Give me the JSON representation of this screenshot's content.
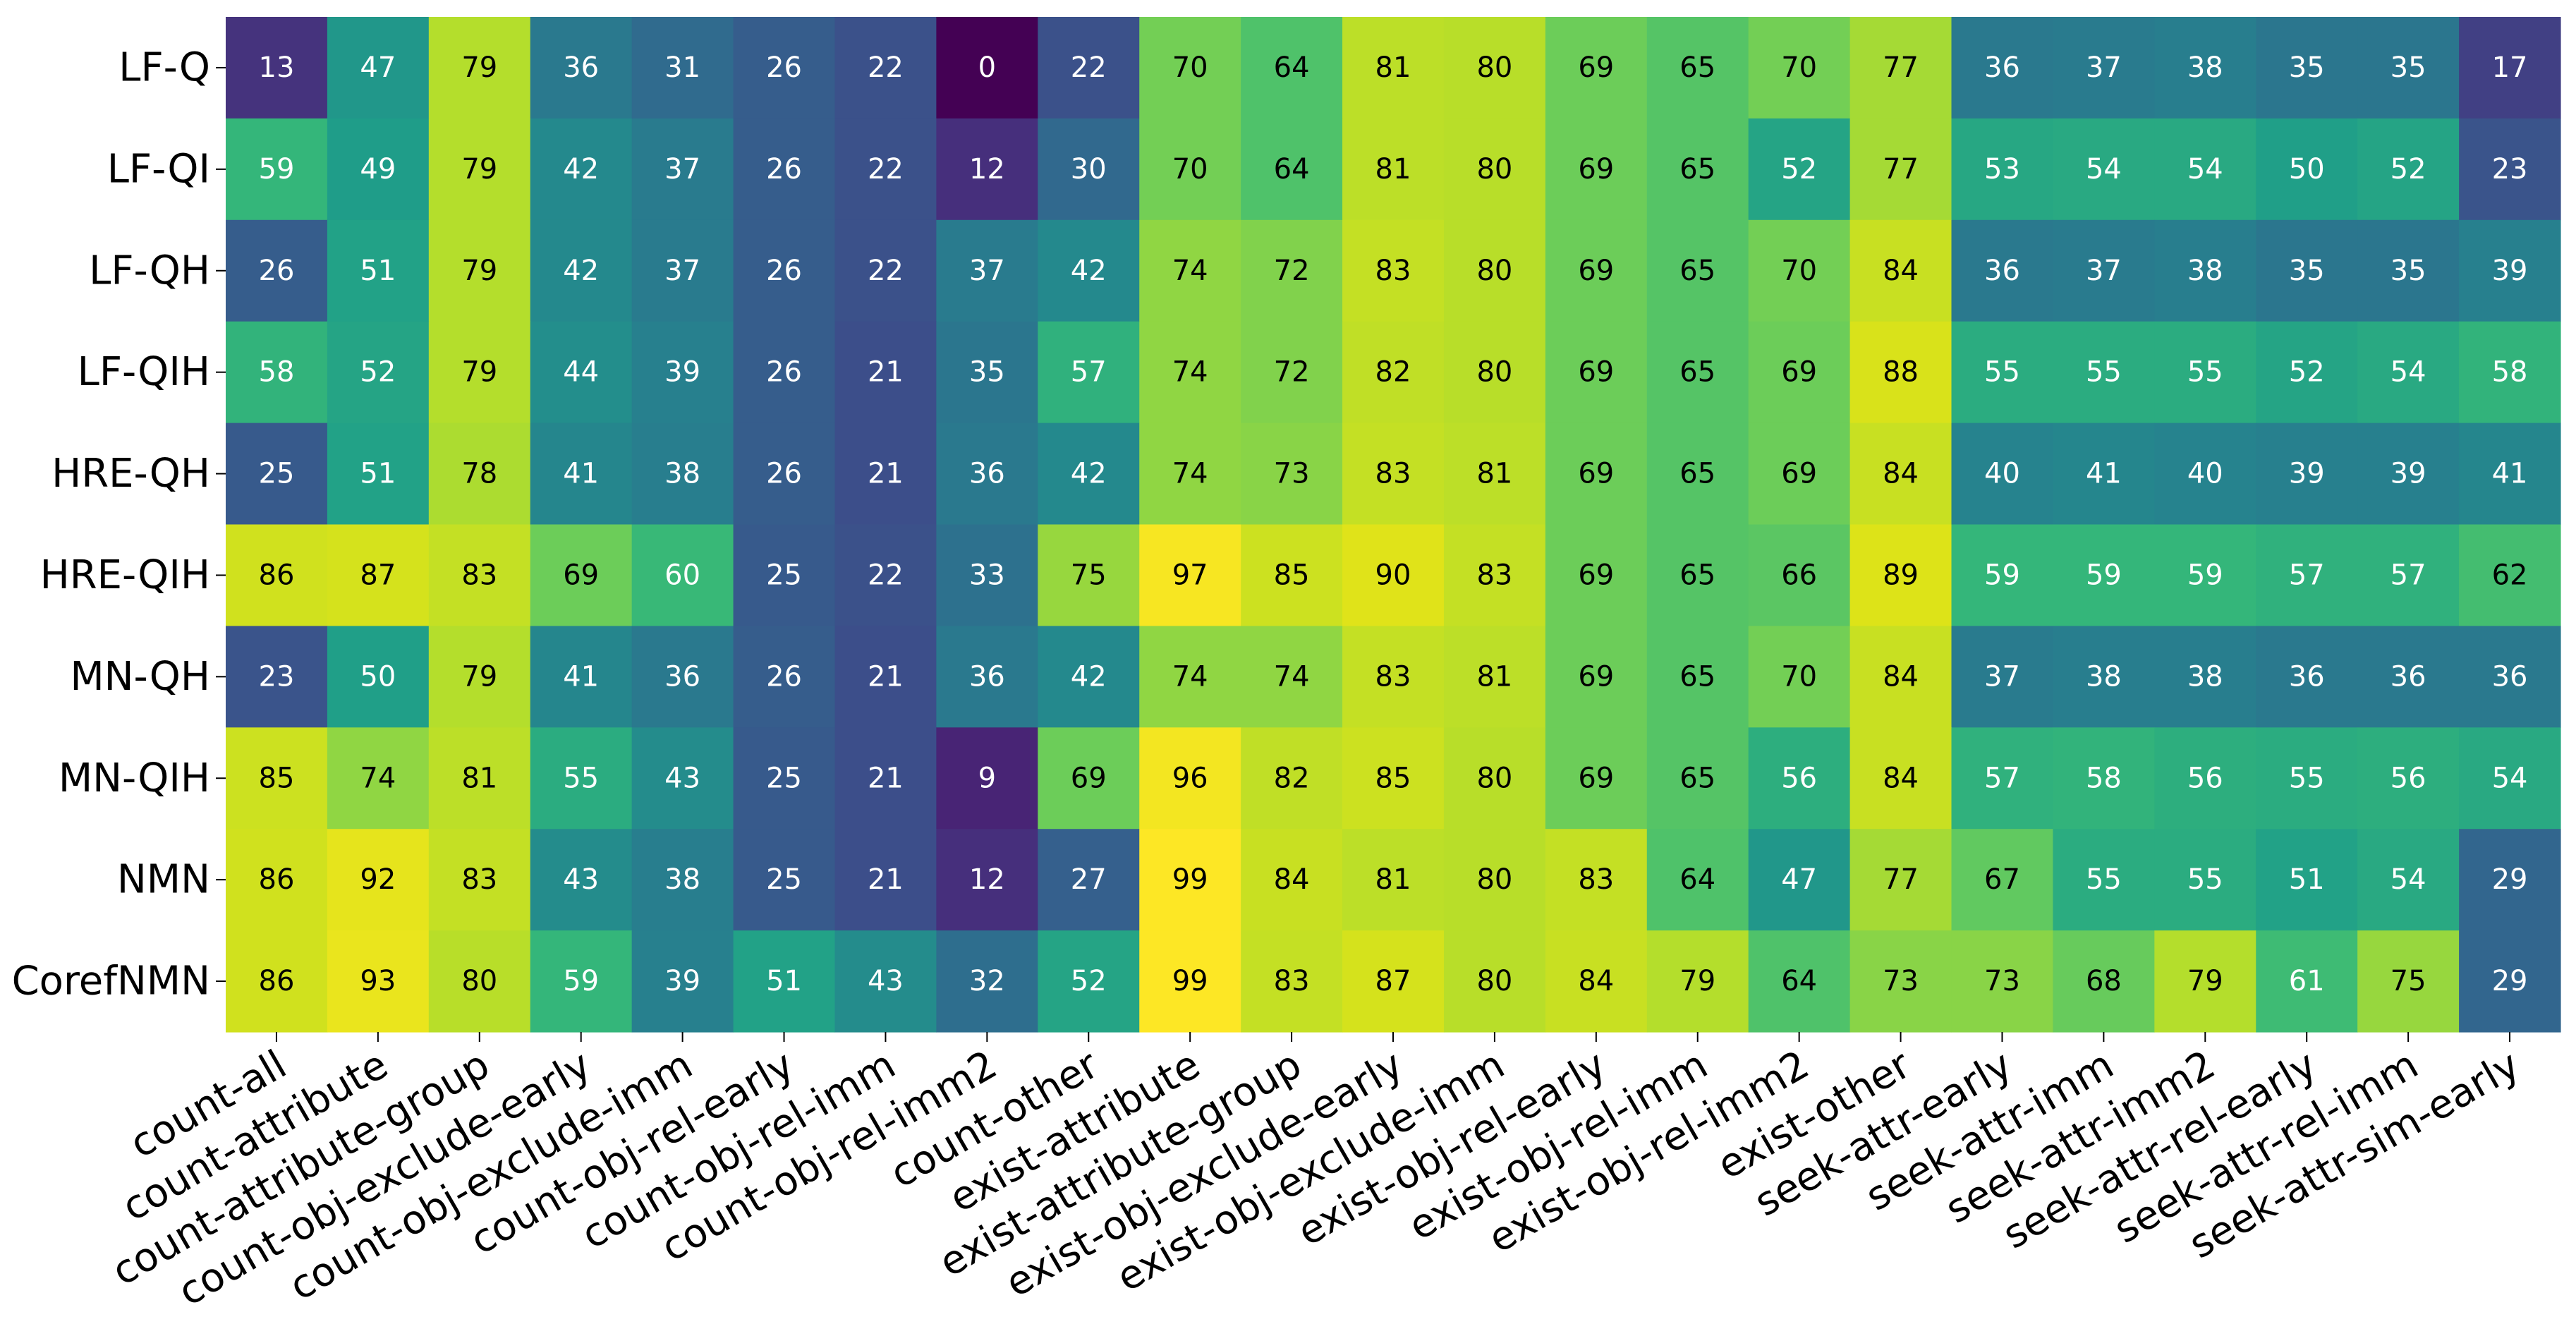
{
  "chart_data": {
    "type": "heatmap",
    "colormap": "viridis",
    "value_range": [
      0,
      99
    ],
    "rows": [
      "LF-Q",
      "LF-QI",
      "LF-QH",
      "LF-QIH",
      "HRE-QH",
      "HRE-QIH",
      "MN-QH",
      "MN-QIH",
      "NMN",
      "CorefNMN"
    ],
    "columns": [
      "count-all",
      "count-attribute",
      "count-attribute-group",
      "count-obj-exclude-early",
      "count-obj-exclude-imm",
      "count-obj-rel-early",
      "count-obj-rel-imm",
      "count-obj-rel-imm2",
      "count-other",
      "exist-attribute",
      "exist-attribute-group",
      "exist-obj-exclude-early",
      "exist-obj-exclude-imm",
      "exist-obj-rel-early",
      "exist-obj-rel-imm",
      "exist-obj-rel-imm2",
      "exist-other",
      "seek-attr-early",
      "seek-attr-imm",
      "seek-attr-imm2",
      "seek-attr-rel-early",
      "seek-attr-rel-imm",
      "seek-attr-sim-early"
    ],
    "values": [
      [
        13,
        47,
        79,
        36,
        31,
        26,
        22,
        0,
        22,
        70,
        64,
        81,
        80,
        69,
        65,
        70,
        77,
        36,
        37,
        38,
        35,
        35,
        17
      ],
      [
        59,
        49,
        79,
        42,
        37,
        26,
        22,
        12,
        30,
        70,
        64,
        81,
        80,
        69,
        65,
        52,
        77,
        53,
        54,
        54,
        50,
        52,
        23
      ],
      [
        26,
        51,
        79,
        42,
        37,
        26,
        22,
        37,
        42,
        74,
        72,
        83,
        80,
        69,
        65,
        70,
        84,
        36,
        37,
        38,
        35,
        35,
        39
      ],
      [
        58,
        52,
        79,
        44,
        39,
        26,
        21,
        35,
        57,
        74,
        72,
        82,
        80,
        69,
        65,
        69,
        88,
        55,
        55,
        55,
        52,
        54,
        58
      ],
      [
        25,
        51,
        78,
        41,
        38,
        26,
        21,
        36,
        42,
        74,
        73,
        83,
        81,
        69,
        65,
        69,
        84,
        40,
        41,
        40,
        39,
        39,
        41
      ],
      [
        86,
        87,
        83,
        69,
        60,
        25,
        22,
        33,
        75,
        97,
        85,
        90,
        83,
        69,
        65,
        66,
        89,
        59,
        59,
        59,
        57,
        57,
        62
      ],
      [
        23,
        50,
        79,
        41,
        36,
        26,
        21,
        36,
        42,
        74,
        74,
        83,
        81,
        69,
        65,
        70,
        84,
        37,
        38,
        38,
        36,
        36,
        36
      ],
      [
        85,
        74,
        81,
        55,
        43,
        25,
        21,
        9,
        69,
        96,
        82,
        85,
        80,
        69,
        65,
        56,
        84,
        57,
        58,
        56,
        55,
        56,
        54
      ],
      [
        86,
        92,
        83,
        43,
        38,
        25,
        21,
        12,
        27,
        99,
        84,
        81,
        80,
        83,
        64,
        47,
        77,
        67,
        55,
        55,
        51,
        54,
        29
      ],
      [
        86,
        93,
        80,
        59,
        39,
        51,
        43,
        32,
        52,
        99,
        83,
        87,
        80,
        84,
        79,
        64,
        73,
        73,
        68,
        79,
        61,
        75,
        29
      ]
    ]
  }
}
